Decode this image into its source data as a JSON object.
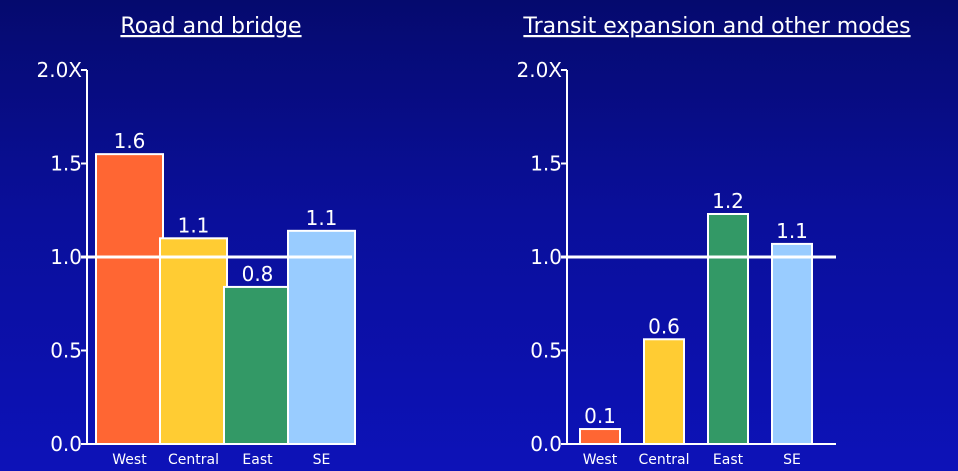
{
  "chart_data": [
    {
      "type": "bar",
      "title": "Road and bridge",
      "categories": [
        "West",
        "Central",
        "East",
        "SE"
      ],
      "values": [
        1.55,
        1.1,
        0.84,
        1.14
      ],
      "data_labels": [
        "1.6",
        "1.1",
        "0.8",
        "1.1"
      ],
      "bar_colors": [
        "#ff6633",
        "#ffcc33",
        "#339966",
        "#99ccff"
      ],
      "ylim": [
        0,
        2.0
      ],
      "yticks": [
        0,
        0.5,
        1.0,
        1.5,
        2.0
      ],
      "ytick_labels": [
        "0.0",
        "0.5",
        "1.0",
        "1.5",
        "2.0X"
      ],
      "reference_line": 1.0,
      "xlabel": "",
      "ylabel": "",
      "grid": false
    },
    {
      "type": "bar",
      "title": "Transit expansion and other modes",
      "categories": [
        "West",
        "Central",
        "East",
        "SE"
      ],
      "values": [
        0.08,
        0.56,
        1.23,
        1.07
      ],
      "data_labels": [
        "0.1",
        "0.6",
        "1.2",
        "1.1"
      ],
      "bar_colors": [
        "#ff6633",
        "#ffcc33",
        "#339966",
        "#99ccff"
      ],
      "ylim": [
        0,
        2.0
      ],
      "yticks": [
        0,
        0.5,
        1.0,
        1.5,
        2.0
      ],
      "ytick_labels": [
        "0.0",
        "0.5",
        "1.0",
        "1.5",
        "2.0X"
      ],
      "reference_line": 1.0,
      "xlabel": "",
      "ylabel": "",
      "grid": false
    }
  ]
}
